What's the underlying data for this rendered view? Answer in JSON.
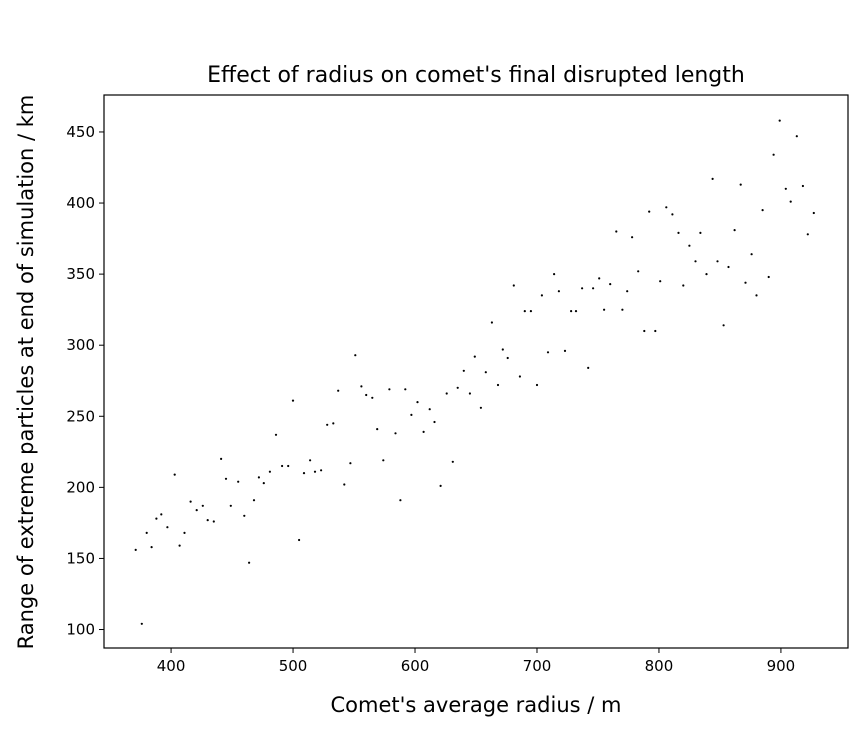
{
  "chart_data": {
    "type": "scatter",
    "title": "Effect of radius on comet's final disrupted length",
    "xlabel": "Comet's average radius / m",
    "ylabel": "Range of extreme particles at end of simulation / km",
    "xlim": [
      345,
      955
    ],
    "ylim": [
      87,
      476
    ],
    "xticks": [
      400,
      500,
      600,
      700,
      800,
      900
    ],
    "yticks": [
      100,
      150,
      200,
      250,
      300,
      350,
      400,
      450
    ],
    "grid": false,
    "marker_color": "#000000",
    "points": [
      {
        "x": 371,
        "y": 156
      },
      {
        "x": 376,
        "y": 104
      },
      {
        "x": 380,
        "y": 168
      },
      {
        "x": 384,
        "y": 158
      },
      {
        "x": 388,
        "y": 178
      },
      {
        "x": 392,
        "y": 181
      },
      {
        "x": 397,
        "y": 172
      },
      {
        "x": 403,
        "y": 209
      },
      {
        "x": 407,
        "y": 159
      },
      {
        "x": 411,
        "y": 168
      },
      {
        "x": 416,
        "y": 190
      },
      {
        "x": 421,
        "y": 184
      },
      {
        "x": 426,
        "y": 187
      },
      {
        "x": 430,
        "y": 177
      },
      {
        "x": 435,
        "y": 176
      },
      {
        "x": 441,
        "y": 220
      },
      {
        "x": 445,
        "y": 206
      },
      {
        "x": 449,
        "y": 187
      },
      {
        "x": 455,
        "y": 204
      },
      {
        "x": 460,
        "y": 180
      },
      {
        "x": 464,
        "y": 147
      },
      {
        "x": 468,
        "y": 191
      },
      {
        "x": 472,
        "y": 207
      },
      {
        "x": 476,
        "y": 203
      },
      {
        "x": 481,
        "y": 211
      },
      {
        "x": 486,
        "y": 237
      },
      {
        "x": 491,
        "y": 215
      },
      {
        "x": 496,
        "y": 215
      },
      {
        "x": 500,
        "y": 261
      },
      {
        "x": 505,
        "y": 163
      },
      {
        "x": 509,
        "y": 210
      },
      {
        "x": 514,
        "y": 219
      },
      {
        "x": 518,
        "y": 211
      },
      {
        "x": 523,
        "y": 212
      },
      {
        "x": 528,
        "y": 244
      },
      {
        "x": 533,
        "y": 245
      },
      {
        "x": 537,
        "y": 268
      },
      {
        "x": 542,
        "y": 202
      },
      {
        "x": 547,
        "y": 217
      },
      {
        "x": 551,
        "y": 293
      },
      {
        "x": 556,
        "y": 271
      },
      {
        "x": 560,
        "y": 265
      },
      {
        "x": 565,
        "y": 263
      },
      {
        "x": 569,
        "y": 241
      },
      {
        "x": 574,
        "y": 219
      },
      {
        "x": 579,
        "y": 269
      },
      {
        "x": 584,
        "y": 238
      },
      {
        "x": 588,
        "y": 191
      },
      {
        "x": 592,
        "y": 269
      },
      {
        "x": 597,
        "y": 251
      },
      {
        "x": 602,
        "y": 260
      },
      {
        "x": 607,
        "y": 239
      },
      {
        "x": 612,
        "y": 255
      },
      {
        "x": 616,
        "y": 246
      },
      {
        "x": 621,
        "y": 201
      },
      {
        "x": 626,
        "y": 266
      },
      {
        "x": 631,
        "y": 218
      },
      {
        "x": 635,
        "y": 270
      },
      {
        "x": 640,
        "y": 282
      },
      {
        "x": 645,
        "y": 266
      },
      {
        "x": 649,
        "y": 292
      },
      {
        "x": 654,
        "y": 256
      },
      {
        "x": 658,
        "y": 281
      },
      {
        "x": 663,
        "y": 316
      },
      {
        "x": 668,
        "y": 272
      },
      {
        "x": 672,
        "y": 297
      },
      {
        "x": 676,
        "y": 291
      },
      {
        "x": 681,
        "y": 342
      },
      {
        "x": 686,
        "y": 278
      },
      {
        "x": 690,
        "y": 324
      },
      {
        "x": 695,
        "y": 324
      },
      {
        "x": 700,
        "y": 272
      },
      {
        "x": 704,
        "y": 335
      },
      {
        "x": 709,
        "y": 295
      },
      {
        "x": 714,
        "y": 350
      },
      {
        "x": 718,
        "y": 338
      },
      {
        "x": 723,
        "y": 296
      },
      {
        "x": 728,
        "y": 324
      },
      {
        "x": 732,
        "y": 324
      },
      {
        "x": 737,
        "y": 340
      },
      {
        "x": 742,
        "y": 284
      },
      {
        "x": 746,
        "y": 340
      },
      {
        "x": 751,
        "y": 347
      },
      {
        "x": 755,
        "y": 325
      },
      {
        "x": 760,
        "y": 343
      },
      {
        "x": 765,
        "y": 380
      },
      {
        "x": 770,
        "y": 325
      },
      {
        "x": 774,
        "y": 338
      },
      {
        "x": 778,
        "y": 376
      },
      {
        "x": 783,
        "y": 352
      },
      {
        "x": 788,
        "y": 310
      },
      {
        "x": 792,
        "y": 394
      },
      {
        "x": 797,
        "y": 310
      },
      {
        "x": 801,
        "y": 345
      },
      {
        "x": 806,
        "y": 397
      },
      {
        "x": 811,
        "y": 392
      },
      {
        "x": 816,
        "y": 379
      },
      {
        "x": 820,
        "y": 342
      },
      {
        "x": 825,
        "y": 370
      },
      {
        "x": 830,
        "y": 359
      },
      {
        "x": 834,
        "y": 379
      },
      {
        "x": 839,
        "y": 350
      },
      {
        "x": 844,
        "y": 417
      },
      {
        "x": 848,
        "y": 359
      },
      {
        "x": 853,
        "y": 314
      },
      {
        "x": 857,
        "y": 355
      },
      {
        "x": 862,
        "y": 381
      },
      {
        "x": 867,
        "y": 413
      },
      {
        "x": 871,
        "y": 344
      },
      {
        "x": 876,
        "y": 364
      },
      {
        "x": 880,
        "y": 335
      },
      {
        "x": 885,
        "y": 395
      },
      {
        "x": 890,
        "y": 348
      },
      {
        "x": 894,
        "y": 434
      },
      {
        "x": 899,
        "y": 458
      },
      {
        "x": 904,
        "y": 410
      },
      {
        "x": 908,
        "y": 401
      },
      {
        "x": 913,
        "y": 447
      },
      {
        "x": 918,
        "y": 412
      },
      {
        "x": 922,
        "y": 378
      },
      {
        "x": 927,
        "y": 393
      }
    ]
  }
}
